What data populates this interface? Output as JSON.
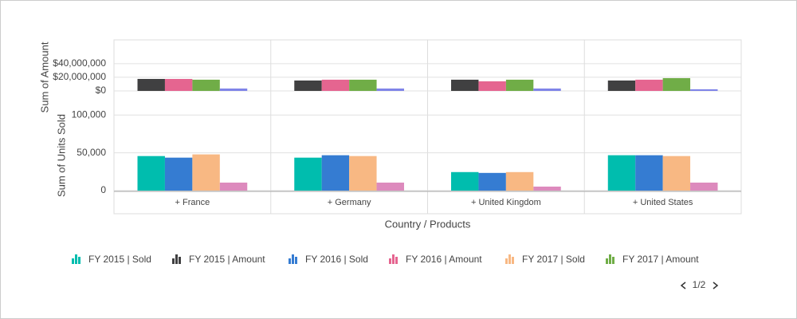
{
  "chart_data": [
    {
      "type": "bar",
      "y_label": "Sum of Amount",
      "ylim": [
        0,
        75000000
      ],
      "yticks": [
        {
          "value": 0,
          "label": "$0"
        },
        {
          "value": 20000000,
          "label": "$20,000,000"
        },
        {
          "value": 40000000,
          "label": "$40,000,000"
        }
      ],
      "grid": true,
      "series": [
        {
          "name": "FY 2015 | Amount",
          "color": "#404041",
          "values": [
            17600000,
            15300000,
            16500000,
            15300000
          ]
        },
        {
          "name": "FY 2016 | Amount",
          "color": "#e56590",
          "values": [
            17600000,
            16500000,
            14100000,
            16500000
          ]
        },
        {
          "name": "FY 2017 | Amount",
          "color": "#70ad47",
          "values": [
            16500000,
            16500000,
            16500000,
            18800000
          ]
        },
        {
          "color": "#7f84e8",
          "values": [
            3500000,
            3500000,
            3500000,
            2400000
          ]
        }
      ]
    },
    {
      "type": "bar",
      "y_label": "Sum of Units Sold",
      "x_label": "Country / Products",
      "categories": [
        "+ France",
        "+ Germany",
        "+ United Kingdom",
        "+ United States"
      ],
      "ylim": [
        0,
        115000
      ],
      "yticks": [
        0,
        {
          "value": 50000,
          "label": "50,000"
        },
        {
          "value": 100000,
          "label": "100,000"
        }
      ],
      "grid": true,
      "series": [
        {
          "name": "FY 2015 | Sold",
          "color": "#00bdae",
          "values": [
            45700,
            43600,
            24500,
            46800
          ]
        },
        {
          "name": "FY 2016 | Sold",
          "color": "#357cd2",
          "values": [
            43600,
            46800,
            23400,
            46800
          ]
        },
        {
          "name": "FY 2017 | Sold",
          "color": "#f8b883",
          "values": [
            47900,
            45700,
            24500,
            45700
          ]
        },
        {
          "color": "#dd8abd",
          "values": [
            10600,
            10600,
            5300,
            10600
          ]
        }
      ]
    }
  ],
  "legend_page": "1/2"
}
